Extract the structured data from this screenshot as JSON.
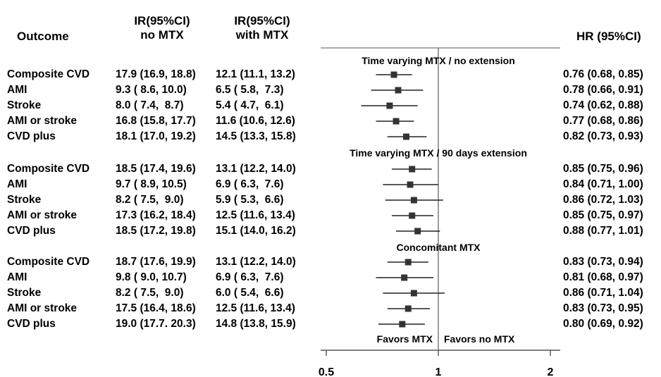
{
  "headers": {
    "outcome": "Outcome",
    "ir_no_mtx": [
      "IR(95%CI)",
      "no MTX"
    ],
    "ir_with_mtx": [
      "IR(95%CI)",
      "with MTX"
    ],
    "hr": "HR (95%CI)"
  },
  "chart_data": {
    "type": "forest",
    "x_scale": "log",
    "x_ticks": [
      "0.5",
      "1",
      "2"
    ],
    "x_tick_values": [
      0.5,
      1,
      2
    ],
    "reference_line": 1,
    "left_label": "Favors MTX",
    "right_label": "Favors no MTX",
    "groups": [
      {
        "title": "Time varying MTX / no extension",
        "rows": [
          {
            "outcome": "Composite CVD",
            "ir_no": "17.9 (16.9, 18.8)",
            "ir_with": "12.1 (11.1, 13.2)",
            "hr_text": "0.76 (0.68, 0.85)",
            "hr": 0.76,
            "lo": 0.68,
            "hi": 0.85
          },
          {
            "outcome": "AMI",
            "ir_no": "9.3 ( 8.6, 10.0)",
            "ir_with": "6.5 ( 5.8,  7.3)",
            "hr_text": "0.78 (0.66, 0.91)",
            "hr": 0.78,
            "lo": 0.66,
            "hi": 0.91
          },
          {
            "outcome": "Stroke",
            "ir_no": "8.0 ( 7.4,  8.7)",
            "ir_with": "5.4 ( 4.7,  6.1)",
            "hr_text": "0.74 (0.62, 0.88)",
            "hr": 0.74,
            "lo": 0.62,
            "hi": 0.88
          },
          {
            "outcome": "AMI or stroke",
            "ir_no": "16.8 (15.8, 17.7)",
            "ir_with": "11.6 (10.6, 12.6)",
            "hr_text": "0.77 (0.68, 0.86)",
            "hr": 0.77,
            "lo": 0.68,
            "hi": 0.86
          },
          {
            "outcome": "CVD plus",
            "ir_no": "18.1 (17.0, 19.2)",
            "ir_with": "14.5 (13.3, 15.8)",
            "hr_text": "0.82 (0.73, 0.93)",
            "hr": 0.82,
            "lo": 0.73,
            "hi": 0.93
          }
        ]
      },
      {
        "title": "Time varying MTX / 90 days extension",
        "rows": [
          {
            "outcome": "Composite CVD",
            "ir_no": "18.5 (17.4, 19.6)",
            "ir_with": "13.1 (12.2, 14.0)",
            "hr_text": "0.85 (0.75, 0.96)",
            "hr": 0.85,
            "lo": 0.75,
            "hi": 0.96
          },
          {
            "outcome": "AMI",
            "ir_no": "9.7 ( 8.9, 10.5)",
            "ir_with": "6.9 ( 6.3,  7.6)",
            "hr_text": "0.84 (0.71, 1.00)",
            "hr": 0.84,
            "lo": 0.71,
            "hi": 1.0
          },
          {
            "outcome": "Stroke",
            "ir_no": "8.2 ( 7.5,  9.0)",
            "ir_with": "5.9 ( 5.3,  6.6)",
            "hr_text": "0.86 (0.72, 1.03)",
            "hr": 0.86,
            "lo": 0.72,
            "hi": 1.03
          },
          {
            "outcome": "AMI or stroke",
            "ir_no": "17.3 (16.2, 18.4)",
            "ir_with": "12.5 (11.6, 13.4)",
            "hr_text": "0.85 (0.75, 0.97)",
            "hr": 0.85,
            "lo": 0.75,
            "hi": 0.97
          },
          {
            "outcome": "CVD plus",
            "ir_no": "18.5 (17.2, 19.8)",
            "ir_with": "15.1 (14.0, 16.2)",
            "hr_text": "0.88 (0.77, 1.01)",
            "hr": 0.88,
            "lo": 0.77,
            "hi": 1.01
          }
        ]
      },
      {
        "title": "Concomitant MTX",
        "rows": [
          {
            "outcome": "Composite CVD",
            "ir_no": "18.7 (17.6, 19.9)",
            "ir_with": "13.1 (12.2, 14.0)",
            "hr_text": "0.83 (0.73, 0.94)",
            "hr": 0.83,
            "lo": 0.73,
            "hi": 0.94
          },
          {
            "outcome": "AMI",
            "ir_no": "9.8 ( 9.0, 10.7)",
            "ir_with": "6.9 ( 6.3,  7.6)",
            "hr_text": "0.81 (0.68, 0.97)",
            "hr": 0.81,
            "lo": 0.68,
            "hi": 0.97
          },
          {
            "outcome": "Stroke",
            "ir_no": "8.2 ( 7.5,  9.0)",
            "ir_with": "6.0 ( 5.4,  6.6)",
            "hr_text": "0.86 (0.71, 1.04)",
            "hr": 0.86,
            "lo": 0.71,
            "hi": 1.04
          },
          {
            "outcome": "AMI or stroke",
            "ir_no": "17.5 (16.4, 18.6)",
            "ir_with": "12.5 (11.6, 13.4)",
            "hr_text": "0.83 (0.73, 0.95)",
            "hr": 0.83,
            "lo": 0.73,
            "hi": 0.95
          },
          {
            "outcome": "CVD plus",
            "ir_no": "19.0 (17.7. 20.3)",
            "ir_with": "14.8 (13.8, 15.9)",
            "hr_text": "0.80 (0.69, 0.92)",
            "hr": 0.8,
            "lo": 0.69,
            "hi": 0.92
          }
        ]
      }
    ]
  }
}
